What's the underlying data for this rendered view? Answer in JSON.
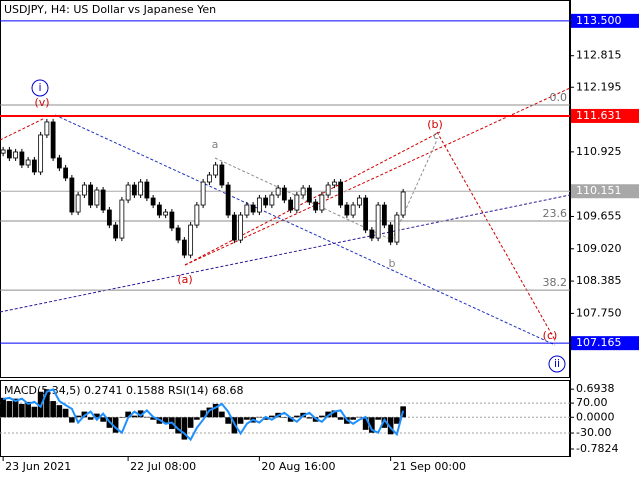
{
  "chart_data": [
    {
      "type": "candlestick",
      "title": "USDJPY, H4:  US Dollar vs Japanese Yen",
      "open": [
        110.9,
        110.962,
        110.805,
        110.923,
        110.667,
        110.765,
        110.529,
        111.257,
        111.513,
        110.805,
        110.608,
        110.411,
        109.742,
        110.077,
        110.273,
        109.88,
        110.175,
        109.782,
        109.486,
        109.231,
        109.978,
        110.273,
        110.077,
        110.332,
        110.018,
        109.88,
        109.683,
        109.742,
        109.428,
        109.191,
        108.896,
        109.486,
        109.88,
        110.332,
        110.47,
        110.667,
        110.273,
        109.683,
        109.191,
        109.683,
        109.88,
        109.742,
        110.018,
        109.88,
        110.077,
        110.214,
        109.978,
        109.782,
        110.077,
        110.214,
        109.939,
        109.782,
        110.077,
        110.273,
        110.332,
        109.88,
        109.683,
        109.88,
        110.018,
        109.388,
        109.231,
        109.88,
        109.486,
        109.152,
        109.683
      ],
      "high": [
        111.022,
        111.022,
        110.983,
        110.983,
        110.825,
        110.825,
        111.317,
        111.573,
        111.573,
        110.865,
        110.668,
        110.471,
        110.137,
        110.333,
        110.333,
        110.235,
        110.235,
        109.842,
        109.546,
        110.038,
        110.333,
        110.333,
        110.392,
        110.392,
        110.078,
        109.94,
        109.802,
        109.802,
        109.488,
        109.251,
        109.546,
        109.94,
        110.392,
        110.53,
        110.727,
        110.727,
        110.333,
        109.743,
        109.743,
        109.94,
        109.94,
        110.078,
        110.078,
        110.137,
        110.274,
        110.274,
        110.038,
        110.137,
        110.274,
        110.274,
        109.999,
        110.137,
        110.333,
        110.392,
        110.392,
        109.94,
        109.94,
        110.078,
        110.078,
        109.448,
        109.94,
        109.94,
        109.546,
        109.743,
        110.196
      ],
      "low": [
        110.84,
        110.745,
        110.745,
        110.607,
        110.607,
        110.469,
        110.469,
        111.197,
        110.745,
        110.548,
        110.351,
        109.682,
        109.682,
        110.017,
        109.82,
        109.82,
        109.722,
        109.426,
        109.171,
        109.171,
        109.918,
        110.017,
        110.017,
        109.958,
        109.82,
        109.623,
        109.623,
        109.368,
        109.131,
        108.836,
        108.836,
        109.426,
        109.82,
        110.272,
        110.41,
        110.213,
        109.623,
        109.131,
        109.131,
        109.623,
        109.682,
        109.682,
        109.82,
        109.82,
        110.017,
        109.918,
        109.722,
        109.722,
        110.017,
        109.879,
        109.722,
        109.722,
        110.017,
        110.213,
        109.82,
        109.623,
        109.623,
        109.82,
        109.328,
        109.171,
        109.171,
        109.426,
        109.092,
        109.092,
        109.623
      ],
      "close": [
        110.962,
        110.805,
        110.923,
        110.667,
        110.765,
        110.529,
        111.257,
        111.513,
        110.805,
        110.608,
        110.411,
        109.742,
        110.077,
        110.273,
        109.88,
        110.175,
        109.782,
        109.486,
        109.231,
        109.978,
        110.273,
        110.077,
        110.332,
        110.018,
        109.88,
        109.683,
        109.742,
        109.428,
        109.191,
        108.896,
        109.486,
        109.88,
        110.332,
        110.47,
        110.667,
        110.273,
        109.683,
        109.191,
        109.683,
        109.88,
        109.742,
        110.018,
        109.88,
        110.077,
        110.214,
        109.978,
        109.782,
        110.077,
        110.214,
        109.939,
        109.782,
        110.077,
        110.273,
        110.332,
        109.88,
        109.683,
        109.88,
        110.018,
        109.388,
        109.231,
        109.88,
        109.486,
        109.152,
        109.683,
        110.136
      ],
      "up_color": "#ffffff",
      "down_color": "#000000",
      "xlim": [
        -0.5,
        90.7
      ],
      "xticks": [
        {
          "value": 0,
          "label": "23 Jun 2021"
        },
        {
          "value": 20,
          "label": "22 Jul 08:00"
        },
        {
          "value": 41,
          "label": "20 Aug 16:00"
        },
        {
          "value": 62,
          "label": "21 Sep 00:00"
        }
      ],
      "ylim": [
        106.48,
        113.91
      ],
      "yticks": [
        {
          "value": 113.5,
          "label": "113.500"
        },
        {
          "value": 112.815,
          "label": "112.815"
        },
        {
          "value": 112.195,
          "label": "112.195"
        },
        {
          "value": 111.631,
          "label": "111.631"
        },
        {
          "value": 110.925,
          "label": "110.925"
        },
        {
          "value": 110.151,
          "label": "110.151"
        },
        {
          "value": 109.655,
          "label": "109.655"
        },
        {
          "value": 109.02,
          "label": "109.020"
        },
        {
          "value": 108.385,
          "label": "108.385"
        },
        {
          "value": 107.75,
          "label": "107.750"
        },
        {
          "value": 107.165,
          "label": "107.165"
        }
      ],
      "levels": [
        {
          "value": 113.5,
          "color": "#0000ff"
        },
        {
          "value": 111.631,
          "color": "#ff0000"
        },
        {
          "value": 110.151,
          "color": "#a8a8a8"
        },
        {
          "value": 107.165,
          "color": "#0000ff"
        }
      ],
      "fib_levels": [
        {
          "value": 111.847,
          "label": "0.0"
        },
        {
          "value": 109.565,
          "label": "23.6"
        },
        {
          "value": 108.208,
          "label": "38.2"
        }
      ],
      "annotations": [
        {
          "text": "i",
          "color": "#0000cd"
        },
        {
          "text": "(v)",
          "color": "#d00000"
        },
        {
          "text": "a",
          "color": "#808080"
        },
        {
          "text": "(a)",
          "color": "#d00000"
        },
        {
          "text": "b",
          "color": "#808080"
        },
        {
          "text": "(b)",
          "color": "#d00000"
        },
        {
          "text": "c",
          "color": "#808080"
        },
        {
          "text": "(c)",
          "color": "#d00000"
        },
        {
          "text": "ii",
          "color": "#0000cd"
        }
      ]
    },
    {
      "type": "macd",
      "title": "MACD(5,34,5) 0.2741 0.1588 RSI(14) 68.68",
      "series": [
        {
          "type": "bar",
          "color": "#000000",
          "values": [
            0.48,
            0.4,
            0.46,
            0.33,
            0.38,
            0.26,
            0.63,
            0.69,
            0.4,
            0.3,
            0.21,
            -0.13,
            0.04,
            0.14,
            -0.06,
            0.09,
            -0.11,
            -0.26,
            -0.38,
            -0.01,
            0.14,
            0.04,
            0.17,
            0.01,
            -0.06,
            -0.16,
            -0.13,
            -0.29,
            -0.4,
            -0.55,
            -0.26,
            -0.06,
            0.17,
            0.24,
            0.33,
            0.14,
            -0.16,
            -0.4,
            -0.16,
            -0.06,
            -0.13,
            0.01,
            -0.06,
            0.04,
            0.11,
            -0.01,
            -0.11,
            0.04,
            0.11,
            -0.03,
            -0.11,
            0.04,
            0.14,
            0.17,
            -0.06,
            -0.16,
            -0.06,
            0.01,
            -0.31,
            -0.38,
            -0.06,
            -0.26,
            -0.42,
            -0.16,
            0.27
          ]
        },
        {
          "type": "line",
          "color": "#1e90ff",
          "values": [
            0.45,
            0.48,
            0.4,
            0.46,
            0.33,
            0.38,
            0.26,
            0.63,
            0.69,
            0.4,
            0.3,
            0.21,
            -0.13,
            0.04,
            0.14,
            -0.06,
            0.09,
            -0.11,
            -0.26,
            -0.38,
            -0.01,
            0.14,
            0.04,
            0.17,
            0.01,
            -0.06,
            -0.16,
            -0.13,
            -0.29,
            -0.4,
            -0.55,
            -0.26,
            -0.06,
            0.17,
            0.24,
            0.33,
            0.14,
            -0.16,
            -0.4,
            -0.16,
            -0.06,
            -0.13,
            0.01,
            -0.06,
            0.04,
            0.11,
            -0.01,
            -0.11,
            0.04,
            0.11,
            -0.03,
            -0.11,
            0.04,
            0.14,
            0.17,
            -0.06,
            -0.16,
            -0.06,
            0.01,
            -0.31,
            -0.38,
            -0.06,
            -0.26,
            -0.42,
            0.16
          ]
        }
      ],
      "ylim": [
        -0.98,
        0.92
      ],
      "yticks": [
        0.6938,
        {
          "value": 0,
          "label": "0.0000"
        },
        -0.7824
      ],
      "y2lim": [
        -110,
        147
      ],
      "y2ticks": [
        {
          "value": 70,
          "label": "70.00"
        },
        {
          "value": -30,
          "label": "-30.00"
        }
      ]
    }
  ]
}
